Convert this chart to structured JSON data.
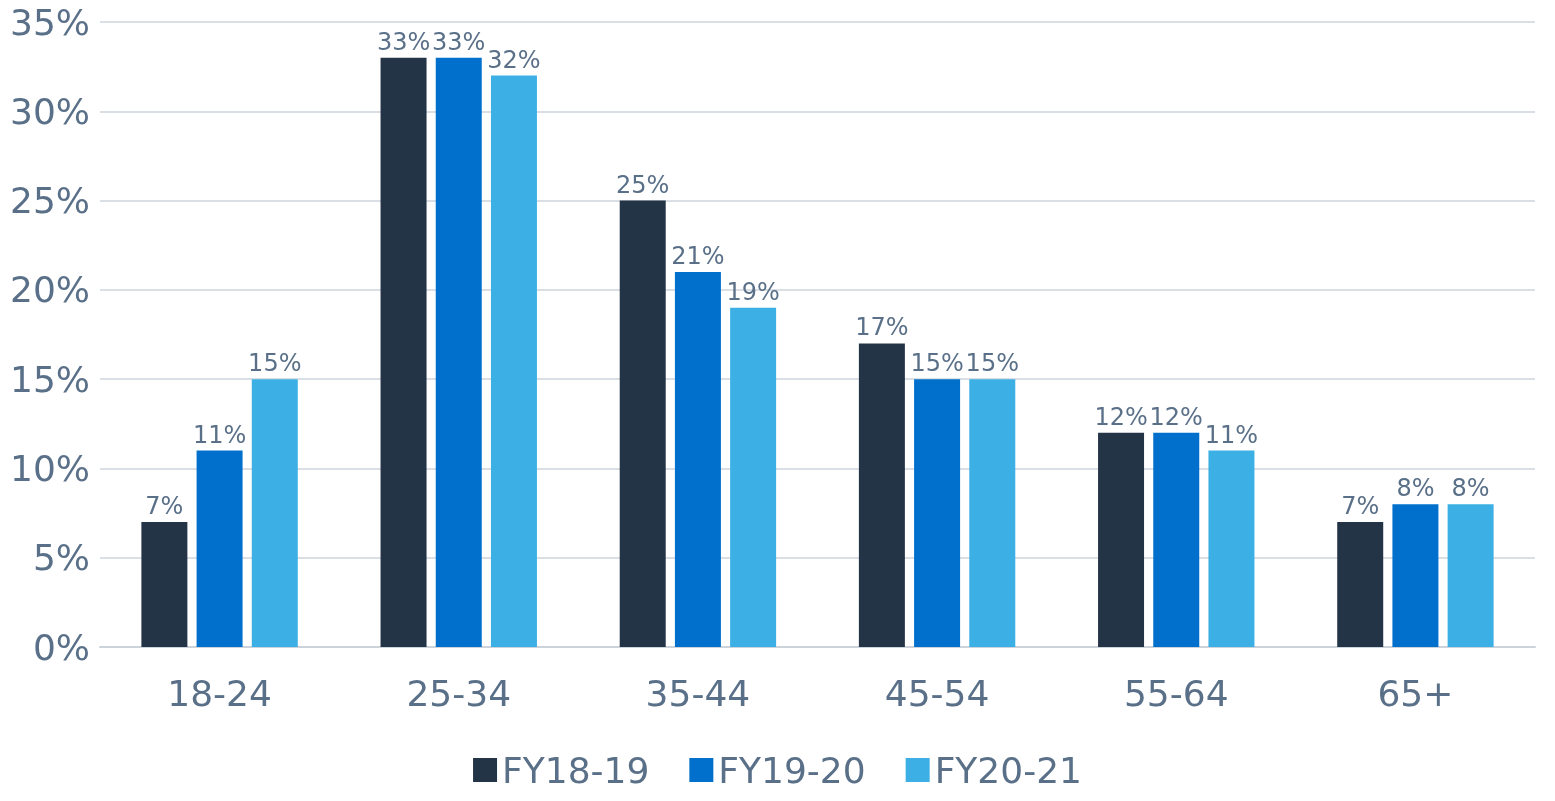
{
  "chart_data": {
    "type": "bar",
    "categories": [
      "18-24",
      "25-34",
      "35-44",
      "45-54",
      "55-64",
      "65+"
    ],
    "series": [
      {
        "name": "FY18-19",
        "color": "#243447",
        "values": [
          7,
          33,
          25,
          17,
          12,
          7
        ],
        "value_labels": [
          "7%",
          "33%",
          "25%",
          "17%",
          "12%",
          "7%"
        ]
      },
      {
        "name": "FY19-20",
        "color": "#0070cc",
        "values": [
          11,
          33,
          21,
          15,
          12,
          8
        ],
        "value_labels": [
          "11%",
          "33%",
          "21%",
          "15%",
          "12%",
          "8%"
        ]
      },
      {
        "name": "FY20-21",
        "color": "#3cb0e4",
        "values": [
          15,
          32,
          19,
          15,
          11,
          8
        ],
        "value_labels": [
          "15%",
          "32%",
          "19%",
          "15%",
          "11%",
          "8%"
        ]
      }
    ],
    "ylim": [
      0,
      35
    ],
    "yticks": [
      {
        "value": 0,
        "label": "0%"
      },
      {
        "value": 5,
        "label": "5%"
      },
      {
        "value": 10,
        "label": "10%"
      },
      {
        "value": 15,
        "label": "15%"
      },
      {
        "value": 20,
        "label": "20%"
      },
      {
        "value": 25,
        "label": "25%"
      },
      {
        "value": 30,
        "label": "30%"
      },
      {
        "value": 35,
        "label": "35%"
      }
    ],
    "grid": "y",
    "legend": "bottom"
  }
}
